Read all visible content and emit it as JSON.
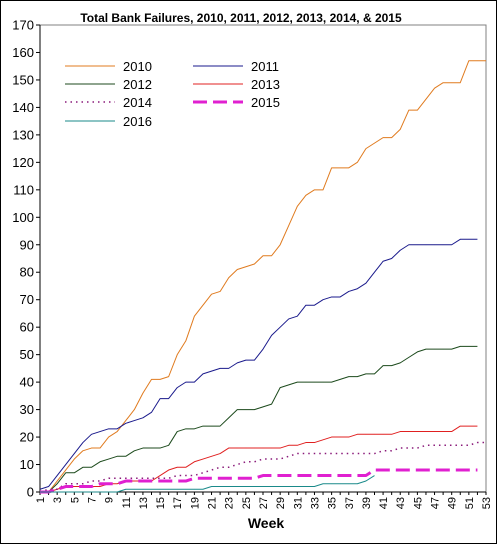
{
  "chart_data": {
    "type": "line",
    "title": "Total Bank Failures, 2010, 2011, 2012, 2013, 2014, & 2015",
    "xlabel": "Week",
    "ylabel": "",
    "ylim": [
      0,
      170
    ],
    "xlim": [
      1,
      53
    ],
    "y_ticks": [
      0,
      10,
      20,
      30,
      40,
      50,
      60,
      70,
      80,
      90,
      100,
      110,
      120,
      130,
      140,
      150,
      160,
      170
    ],
    "x_ticks": [
      1,
      3,
      5,
      7,
      9,
      11,
      13,
      15,
      17,
      19,
      21,
      23,
      25,
      27,
      29,
      31,
      33,
      35,
      37,
      39,
      41,
      43,
      45,
      47,
      49,
      51,
      53
    ],
    "grid": false,
    "legend_position": "top-left inside plot",
    "series": [
      {
        "name": "2010",
        "color": "#e07b1f",
        "style": "solid",
        "x": [
          1,
          2,
          3,
          4,
          5,
          6,
          7,
          8,
          9,
          10,
          11,
          12,
          13,
          14,
          15,
          16,
          17,
          18,
          19,
          20,
          21,
          22,
          23,
          24,
          25,
          26,
          27,
          28,
          29,
          30,
          31,
          32,
          33,
          34,
          35,
          36,
          37,
          38,
          39,
          40,
          41,
          42,
          43,
          44,
          45,
          46,
          47,
          48,
          49,
          50,
          51,
          52,
          53
        ],
        "values": [
          0,
          0,
          4,
          8,
          12,
          15,
          16,
          16,
          20,
          22,
          26,
          30,
          36,
          41,
          41,
          42,
          50,
          55,
          64,
          68,
          72,
          73,
          78,
          81,
          82,
          83,
          86,
          86,
          90,
          97,
          104,
          108,
          110,
          110,
          118,
          118,
          118,
          120,
          125,
          127,
          129,
          129,
          132,
          139,
          139,
          143,
          147,
          149,
          149,
          149,
          157,
          157,
          157
        ]
      },
      {
        "name": "2011",
        "color": "#1a1a8c",
        "style": "solid",
        "x": [
          1,
          2,
          3,
          4,
          5,
          6,
          7,
          8,
          9,
          10,
          11,
          12,
          13,
          14,
          15,
          16,
          17,
          18,
          19,
          20,
          21,
          22,
          23,
          24,
          25,
          26,
          27,
          28,
          29,
          30,
          31,
          32,
          33,
          34,
          35,
          36,
          37,
          38,
          39,
          40,
          41,
          42,
          43,
          44,
          45,
          46,
          47,
          48,
          49,
          50,
          51,
          52
        ],
        "values": [
          1,
          2,
          6,
          10,
          14,
          18,
          21,
          22,
          23,
          23,
          25,
          26,
          27,
          29,
          34,
          34,
          38,
          40,
          40,
          43,
          44,
          45,
          45,
          47,
          48,
          48,
          52,
          57,
          60,
          63,
          64,
          68,
          68,
          70,
          71,
          71,
          73,
          74,
          76,
          80,
          84,
          85,
          88,
          90,
          90,
          90,
          90,
          90,
          90,
          92,
          92,
          92
        ]
      },
      {
        "name": "2012",
        "color": "#1c4a1c",
        "style": "solid",
        "x": [
          1,
          2,
          3,
          4,
          5,
          6,
          7,
          8,
          9,
          10,
          11,
          12,
          13,
          14,
          15,
          16,
          17,
          18,
          19,
          20,
          21,
          22,
          23,
          24,
          25,
          26,
          27,
          28,
          29,
          30,
          31,
          32,
          33,
          34,
          35,
          36,
          37,
          38,
          39,
          40,
          41,
          42,
          43,
          44,
          45,
          46,
          47,
          48,
          49,
          50,
          51,
          52
        ],
        "values": [
          0,
          0,
          3,
          7,
          7,
          9,
          9,
          11,
          12,
          13,
          13,
          15,
          16,
          16,
          16,
          17,
          22,
          23,
          23,
          24,
          24,
          24,
          27,
          30,
          30,
          30,
          31,
          32,
          38,
          39,
          40,
          40,
          40,
          40,
          40,
          41,
          42,
          42,
          43,
          43,
          46,
          46,
          47,
          49,
          51,
          52,
          52,
          52,
          52,
          53,
          53,
          53
        ]
      },
      {
        "name": "2013",
        "color": "#e02020",
        "style": "solid",
        "x": [
          1,
          2,
          3,
          4,
          5,
          6,
          7,
          8,
          9,
          10,
          11,
          12,
          13,
          14,
          15,
          16,
          17,
          18,
          19,
          20,
          21,
          22,
          23,
          24,
          25,
          26,
          27,
          28,
          29,
          30,
          31,
          32,
          33,
          34,
          35,
          36,
          37,
          38,
          39,
          40,
          41,
          42,
          43,
          44,
          45,
          46,
          47,
          48,
          49,
          50,
          51,
          52
        ],
        "values": [
          0,
          0,
          1,
          2,
          2,
          2,
          2,
          2,
          3,
          3,
          4,
          4,
          4,
          4,
          6,
          8,
          9,
          9,
          11,
          12,
          13,
          14,
          16,
          16,
          16,
          16,
          16,
          16,
          16,
          17,
          17,
          18,
          18,
          19,
          20,
          20,
          20,
          21,
          21,
          21,
          21,
          21,
          22,
          22,
          22,
          22,
          22,
          22,
          22,
          24,
          24,
          24
        ]
      },
      {
        "name": "2014",
        "color": "#8a1a7a",
        "style": "dotted",
        "x": [
          1,
          2,
          3,
          4,
          5,
          6,
          7,
          8,
          9,
          10,
          11,
          12,
          13,
          14,
          15,
          16,
          17,
          18,
          19,
          20,
          21,
          22,
          23,
          24,
          25,
          26,
          27,
          28,
          29,
          30,
          31,
          32,
          33,
          34,
          35,
          36,
          37,
          38,
          39,
          40,
          41,
          42,
          43,
          44,
          45,
          46,
          47,
          48,
          49,
          50,
          51,
          52,
          53
        ],
        "values": [
          0,
          1,
          1,
          3,
          3,
          3,
          4,
          4,
          5,
          5,
          5,
          5,
          5,
          5,
          5,
          5,
          6,
          6,
          6,
          7,
          8,
          9,
          9,
          10,
          11,
          11,
          12,
          12,
          12,
          13,
          14,
          14,
          14,
          14,
          14,
          14,
          14,
          14,
          14,
          14,
          15,
          15,
          16,
          16,
          16,
          17,
          17,
          17,
          17,
          17,
          17,
          18,
          18
        ]
      },
      {
        "name": "2015",
        "color": "#e020d0",
        "style": "dashed",
        "x": [
          1,
          2,
          3,
          4,
          5,
          6,
          7,
          8,
          9,
          10,
          11,
          12,
          13,
          14,
          15,
          16,
          17,
          18,
          19,
          20,
          21,
          22,
          23,
          24,
          25,
          26,
          27,
          28,
          29,
          30,
          31,
          32,
          33,
          34,
          35,
          36,
          37,
          38,
          39,
          40,
          41,
          42,
          43,
          44,
          45,
          46,
          47,
          48,
          49,
          50,
          51,
          52
        ],
        "values": [
          0,
          0,
          1,
          2,
          2,
          2,
          2,
          3,
          3,
          3,
          4,
          4,
          4,
          4,
          4,
          4,
          4,
          4,
          5,
          5,
          5,
          5,
          5,
          5,
          5,
          5,
          6,
          6,
          6,
          6,
          6,
          6,
          6,
          6,
          6,
          6,
          6,
          6,
          6,
          8,
          8,
          8,
          8,
          8,
          8,
          8,
          8,
          8,
          8,
          8,
          8,
          8
        ]
      },
      {
        "name": "2016",
        "color": "#1a8a8a",
        "style": "solid",
        "x": [
          1,
          2,
          3,
          4,
          5,
          6,
          7,
          8,
          9,
          10,
          11,
          12,
          13,
          14,
          15,
          16,
          17,
          18,
          19,
          20,
          21,
          22,
          23,
          24,
          25,
          26,
          27,
          28,
          29,
          30,
          31,
          32,
          33,
          34,
          35,
          36,
          37,
          38,
          39,
          40
        ],
        "values": [
          0,
          0,
          0,
          0,
          0,
          0,
          0,
          0,
          0,
          0,
          1,
          1,
          1,
          1,
          1,
          1,
          1,
          1,
          1,
          1,
          2,
          2,
          2,
          2,
          2,
          2,
          2,
          2,
          2,
          2,
          2,
          2,
          2,
          3,
          3,
          3,
          3,
          3,
          4,
          6
        ]
      }
    ]
  }
}
